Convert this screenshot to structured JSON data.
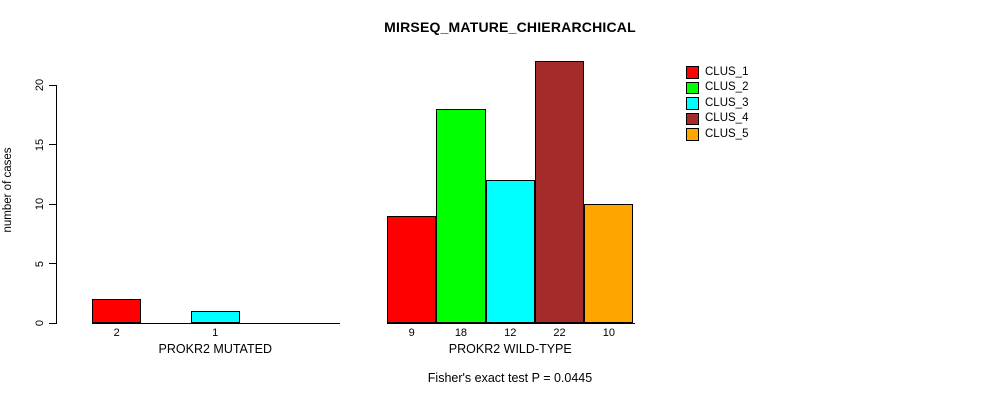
{
  "chart_data": {
    "type": "bar",
    "title": "MIRSEQ_MATURE_CHIERARCHICAL",
    "xlabel": "",
    "ylabel": "number of cases",
    "ylim": [
      0,
      22
    ],
    "yticks": [
      0,
      5,
      10,
      15,
      20
    ],
    "grid": false,
    "legend_position": "right",
    "categories": [
      "PROKR2 MUTATED",
      "PROKR2 WILD-TYPE"
    ],
    "series": [
      {
        "name": "CLUS_1",
        "color": "#ff0000",
        "values": [
          2,
          9
        ]
      },
      {
        "name": "CLUS_2",
        "color": "#00ff00",
        "values": [
          0,
          18
        ]
      },
      {
        "name": "CLUS_3",
        "color": "#00ffff",
        "values": [
          1,
          12
        ]
      },
      {
        "name": "CLUS_4",
        "color": "#a52a2a",
        "values": [
          0,
          22
        ]
      },
      {
        "name": "CLUS_5",
        "color": "#ffa500",
        "values": [
          0,
          10
        ]
      }
    ],
    "bar_value_labels": {
      "PROKR2 MUTATED": [
        "2",
        "1"
      ],
      "PROKR2 WILD-TYPE": [
        "9",
        "18",
        "12",
        "22",
        "10"
      ],
      "rule": "value printed below each bar whose value > 0"
    },
    "annotation": "Fisher's exact test P = 0.0445",
    "axis_color": "#000000",
    "background": "#ffffff"
  }
}
